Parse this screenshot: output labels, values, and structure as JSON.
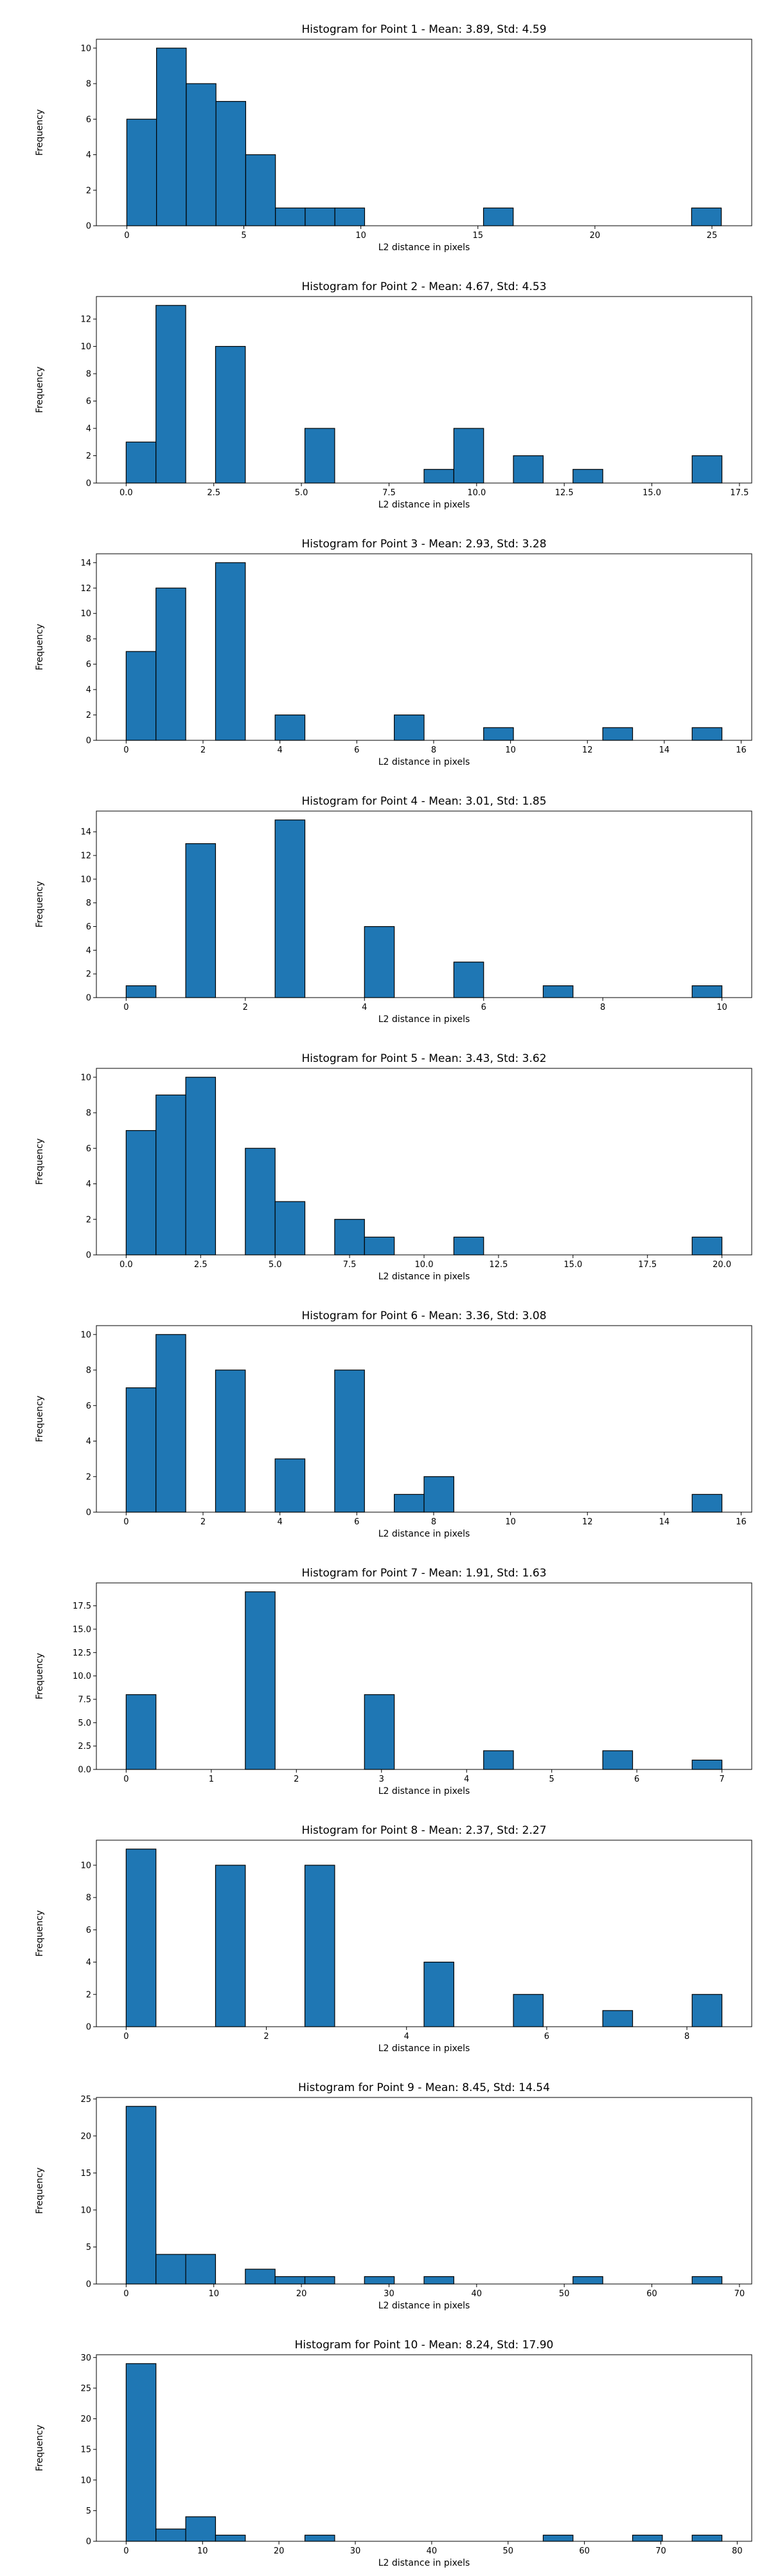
{
  "figure": {
    "title": ""
  },
  "chart_data": [
    {
      "type": "bar",
      "title": "Histogram for Point 1 - Mean: 3.89, Std: 4.59",
      "xlabel": "L2 distance in pixels",
      "ylabel": "Frequency",
      "xlim": [
        -1.3,
        26.7
      ],
      "ylim": [
        0,
        10.5
      ],
      "xticks": [
        0,
        5,
        10,
        15,
        20,
        25
      ],
      "xtick_labels": [
        "0",
        "5",
        "10",
        "15",
        "20",
        "25"
      ],
      "yticks": [
        0,
        2,
        4,
        6,
        8,
        10
      ],
      "ytick_labels": [
        "0",
        "2",
        "4",
        "6",
        "8",
        "10"
      ],
      "bin_edges": [
        0.0,
        1.27,
        2.54,
        3.81,
        5.08,
        6.35,
        7.62,
        8.89,
        10.16,
        11.43,
        12.7,
        13.97,
        15.24,
        16.51,
        17.78,
        19.05,
        20.32,
        21.59,
        22.86,
        24.13,
        25.4
      ],
      "counts": [
        6,
        10,
        8,
        7,
        4,
        1,
        1,
        1,
        0,
        0,
        0,
        0,
        1,
        0,
        0,
        0,
        0,
        0,
        0,
        1
      ],
      "bar_color": "#1f77b4",
      "edge_color": "#000000",
      "grid": false
    },
    {
      "type": "bar",
      "title": "Histogram for Point 2 - Mean: 4.67, Std: 4.53",
      "xlabel": "L2 distance in pixels",
      "ylabel": "Frequency",
      "xlim": [
        -0.85,
        17.85
      ],
      "ylim": [
        0,
        13.65
      ],
      "xticks": [
        0,
        2.5,
        5,
        7.5,
        10,
        12.5,
        15,
        17.5
      ],
      "xtick_labels": [
        "0.0",
        "2.5",
        "5.0",
        "7.5",
        "10.0",
        "12.5",
        "15.0",
        "17.5"
      ],
      "yticks": [
        0,
        2,
        4,
        6,
        8,
        10,
        12
      ],
      "ytick_labels": [
        "0",
        "2",
        "4",
        "6",
        "8",
        "10",
        "12"
      ],
      "bin_edges": [
        0.0,
        0.85,
        1.7,
        2.55,
        3.4,
        4.25,
        5.1,
        5.95,
        6.8,
        7.65,
        8.5,
        9.35,
        10.2,
        11.05,
        11.9,
        12.75,
        13.6,
        14.45,
        15.3,
        16.15,
        17.0
      ],
      "counts": [
        3,
        13,
        0,
        10,
        0,
        0,
        4,
        0,
        0,
        0,
        1,
        4,
        0,
        2,
        0,
        1,
        0,
        0,
        0,
        2
      ],
      "bar_color": "#1f77b4",
      "edge_color": "#000000",
      "grid": false
    },
    {
      "type": "bar",
      "title": "Histogram for Point 3 - Mean: 2.93, Std: 3.28",
      "xlabel": "L2 distance in pixels",
      "ylabel": "Frequency",
      "xlim": [
        -0.775,
        16.275
      ],
      "ylim": [
        0,
        14.7
      ],
      "xticks": [
        0,
        2,
        4,
        6,
        8,
        10,
        12,
        14,
        16
      ],
      "xtick_labels": [
        "0",
        "2",
        "4",
        "6",
        "8",
        "10",
        "12",
        "14",
        "16"
      ],
      "yticks": [
        0,
        2,
        4,
        6,
        8,
        10,
        12,
        14
      ],
      "ytick_labels": [
        "0",
        "2",
        "4",
        "6",
        "8",
        "10",
        "12",
        "14"
      ],
      "bin_edges": [
        0.0,
        0.775,
        1.55,
        2.325,
        3.1,
        3.875,
        4.65,
        5.425,
        6.2,
        6.975,
        7.75,
        8.525,
        9.3,
        10.075,
        10.85,
        11.625,
        12.4,
        13.175,
        13.95,
        14.725,
        15.5
      ],
      "counts": [
        7,
        12,
        0,
        14,
        0,
        2,
        0,
        0,
        0,
        2,
        0,
        0,
        1,
        0,
        0,
        0,
        1,
        0,
        0,
        1
      ],
      "bar_color": "#1f77b4",
      "edge_color": "#000000",
      "grid": false
    },
    {
      "type": "bar",
      "title": "Histogram for Point 4 - Mean: 3.01, Std: 1.85",
      "xlabel": "L2 distance in pixels",
      "ylabel": "Frequency",
      "xlim": [
        -0.5,
        10.5
      ],
      "ylim": [
        0,
        15.75
      ],
      "xticks": [
        0,
        2,
        4,
        6,
        8,
        10
      ],
      "xtick_labels": [
        "0",
        "2",
        "4",
        "6",
        "8",
        "10"
      ],
      "yticks": [
        0,
        2,
        4,
        6,
        8,
        10,
        12,
        14
      ],
      "ytick_labels": [
        "0",
        "2",
        "4",
        "6",
        "8",
        "10",
        "12",
        "14"
      ],
      "bin_edges": [
        0.0,
        0.5,
        1.0,
        1.5,
        2.0,
        2.5,
        3.0,
        3.5,
        4.0,
        4.5,
        5.0,
        5.5,
        6.0,
        6.5,
        7.0,
        7.5,
        8.0,
        8.5,
        9.0,
        9.5,
        10.0
      ],
      "counts": [
        1,
        0,
        13,
        0,
        0,
        15,
        0,
        0,
        6,
        0,
        0,
        3,
        0,
        0,
        1,
        0,
        0,
        0,
        0,
        1
      ],
      "bar_color": "#1f77b4",
      "edge_color": "#000000",
      "grid": false
    },
    {
      "type": "bar",
      "title": "Histogram for Point 5 - Mean: 3.43, Std: 3.62",
      "xlabel": "L2 distance in pixels",
      "ylabel": "Frequency",
      "xlim": [
        -1.0,
        21.0
      ],
      "ylim": [
        0,
        10.5
      ],
      "xticks": [
        0,
        2.5,
        5,
        7.5,
        10,
        12.5,
        15,
        17.5,
        20
      ],
      "xtick_labels": [
        "0.0",
        "2.5",
        "5.0",
        "7.5",
        "10.0",
        "12.5",
        "15.0",
        "17.5",
        "20.0"
      ],
      "yticks": [
        0,
        2,
        4,
        6,
        8,
        10
      ],
      "ytick_labels": [
        "0",
        "2",
        "4",
        "6",
        "8",
        "10"
      ],
      "bin_edges": [
        0.0,
        1.0,
        2.0,
        3.0,
        4.0,
        5.0,
        6.0,
        7.0,
        8.0,
        9.0,
        10.0,
        11.0,
        12.0,
        13.0,
        14.0,
        15.0,
        16.0,
        17.0,
        18.0,
        19.0,
        20.0
      ],
      "counts": [
        7,
        9,
        10,
        0,
        6,
        3,
        0,
        2,
        1,
        0,
        0,
        1,
        0,
        0,
        0,
        0,
        0,
        0,
        0,
        1
      ],
      "bar_color": "#1f77b4",
      "edge_color": "#000000",
      "grid": false
    },
    {
      "type": "bar",
      "title": "Histogram for Point 6 - Mean: 3.36, Std: 3.08",
      "xlabel": "L2 distance in pixels",
      "ylabel": "Frequency",
      "xlim": [
        -0.775,
        16.275
      ],
      "ylim": [
        0,
        10.5
      ],
      "xticks": [
        0,
        2,
        4,
        6,
        8,
        10,
        12,
        14,
        16
      ],
      "xtick_labels": [
        "0",
        "2",
        "4",
        "6",
        "8",
        "10",
        "12",
        "14",
        "16"
      ],
      "yticks": [
        0,
        2,
        4,
        6,
        8,
        10
      ],
      "ytick_labels": [
        "0",
        "2",
        "4",
        "6",
        "8",
        "10"
      ],
      "bin_edges": [
        0.0,
        0.775,
        1.55,
        2.325,
        3.1,
        3.875,
        4.65,
        5.425,
        6.2,
        6.975,
        7.75,
        8.525,
        9.3,
        10.075,
        10.85,
        11.625,
        12.4,
        13.175,
        13.95,
        14.725,
        15.5
      ],
      "counts": [
        7,
        10,
        0,
        8,
        0,
        3,
        0,
        8,
        0,
        1,
        2,
        0,
        0,
        0,
        0,
        0,
        0,
        0,
        0,
        1
      ],
      "bar_color": "#1f77b4",
      "edge_color": "#000000",
      "grid": false
    },
    {
      "type": "bar",
      "title": "Histogram for Point 7 - Mean: 1.91, Std: 1.63",
      "xlabel": "L2 distance in pixels",
      "ylabel": "Frequency",
      "xlim": [
        -0.35,
        7.35
      ],
      "ylim": [
        0,
        19.95
      ],
      "xticks": [
        0,
        1,
        2,
        3,
        4,
        5,
        6,
        7
      ],
      "xtick_labels": [
        "0",
        "1",
        "2",
        "3",
        "4",
        "5",
        "6",
        "7"
      ],
      "yticks": [
        0,
        2.5,
        5,
        7.5,
        10,
        12.5,
        15,
        17.5
      ],
      "ytick_labels": [
        "0.0",
        "2.5",
        "5.0",
        "7.5",
        "10.0",
        "12.5",
        "15.0",
        "17.5"
      ],
      "bin_edges": [
        0.0,
        0.35,
        0.7,
        1.05,
        1.4,
        1.75,
        2.1,
        2.45,
        2.8,
        3.15,
        3.5,
        3.85,
        4.2,
        4.55,
        4.9,
        5.25,
        5.6,
        5.95,
        6.3,
        6.65,
        7.0
      ],
      "counts": [
        8,
        0,
        0,
        0,
        19,
        0,
        0,
        0,
        8,
        0,
        0,
        0,
        2,
        0,
        0,
        0,
        2,
        0,
        0,
        1
      ],
      "bar_color": "#1f77b4",
      "edge_color": "#000000",
      "grid": false
    },
    {
      "type": "bar",
      "title": "Histogram for Point 8 - Mean: 2.37, Std: 2.27",
      "xlabel": "L2 distance in pixels",
      "ylabel": "Frequency",
      "xlim": [
        -0.425,
        8.925
      ],
      "ylim": [
        0,
        11.55
      ],
      "xticks": [
        0,
        2,
        4,
        6,
        8
      ],
      "xtick_labels": [
        "0",
        "2",
        "4",
        "6",
        "8"
      ],
      "yticks": [
        0,
        2,
        4,
        6,
        8,
        10
      ],
      "ytick_labels": [
        "0",
        "2",
        "4",
        "6",
        "8",
        "10"
      ],
      "bin_edges": [
        0.0,
        0.425,
        0.85,
        1.275,
        1.7,
        2.125,
        2.55,
        2.975,
        3.4,
        3.825,
        4.25,
        4.675,
        5.1,
        5.525,
        5.95,
        6.375,
        6.8,
        7.225,
        7.65,
        8.075,
        8.5
      ],
      "counts": [
        11,
        0,
        0,
        10,
        0,
        0,
        10,
        0,
        0,
        0,
        4,
        0,
        0,
        2,
        0,
        0,
        1,
        0,
        0,
        2
      ],
      "bar_color": "#1f77b4",
      "edge_color": "#000000",
      "grid": false
    },
    {
      "type": "bar",
      "title": "Histogram for Point 9 - Mean: 8.45, Std: 14.54",
      "xlabel": "L2 distance in pixels",
      "ylabel": "Frequency",
      "xlim": [
        -3.4,
        71.4
      ],
      "ylim": [
        0,
        25.2
      ],
      "xticks": [
        0,
        10,
        20,
        30,
        40,
        50,
        60,
        70
      ],
      "xtick_labels": [
        "0",
        "10",
        "20",
        "30",
        "40",
        "50",
        "60",
        "70"
      ],
      "yticks": [
        0,
        5,
        10,
        15,
        20,
        25
      ],
      "ytick_labels": [
        "0",
        "5",
        "10",
        "15",
        "20",
        "25"
      ],
      "bin_edges": [
        0.0,
        3.4,
        6.8,
        10.2,
        13.6,
        17.0,
        20.4,
        23.8,
        27.2,
        30.6,
        34.0,
        37.4,
        40.8,
        44.2,
        47.6,
        51.0,
        54.4,
        57.8,
        61.2,
        64.6,
        68.0
      ],
      "counts": [
        24,
        4,
        4,
        0,
        2,
        1,
        1,
        0,
        1,
        0,
        1,
        0,
        0,
        0,
        0,
        1,
        0,
        0,
        0,
        1
      ],
      "bar_color": "#1f77b4",
      "edge_color": "#000000",
      "grid": false
    },
    {
      "type": "bar",
      "title": "Histogram for Point 10 - Mean: 8.24, Std: 17.90",
      "xlabel": "L2 distance in pixels",
      "ylabel": "Frequency",
      "xlim": [
        -3.9,
        81.9
      ],
      "ylim": [
        0,
        30.45
      ],
      "xticks": [
        0,
        10,
        20,
        30,
        40,
        50,
        60,
        70,
        80
      ],
      "xtick_labels": [
        "0",
        "10",
        "20",
        "30",
        "40",
        "50",
        "60",
        "70",
        "80"
      ],
      "yticks": [
        0,
        5,
        10,
        15,
        20,
        25,
        30
      ],
      "ytick_labels": [
        "0",
        "5",
        "10",
        "15",
        "20",
        "25",
        "30"
      ],
      "bin_edges": [
        0.0,
        3.9,
        7.8,
        11.7,
        15.6,
        19.5,
        23.4,
        27.3,
        31.2,
        35.1,
        39.0,
        42.9,
        46.8,
        50.7,
        54.6,
        58.5,
        62.4,
        66.3,
        70.2,
        74.1,
        78.0
      ],
      "counts": [
        29,
        2,
        4,
        1,
        0,
        0,
        1,
        0,
        0,
        0,
        0,
        0,
        0,
        0,
        1,
        0,
        0,
        1,
        0,
        1
      ],
      "bar_color": "#1f77b4",
      "edge_color": "#000000",
      "grid": false
    }
  ]
}
